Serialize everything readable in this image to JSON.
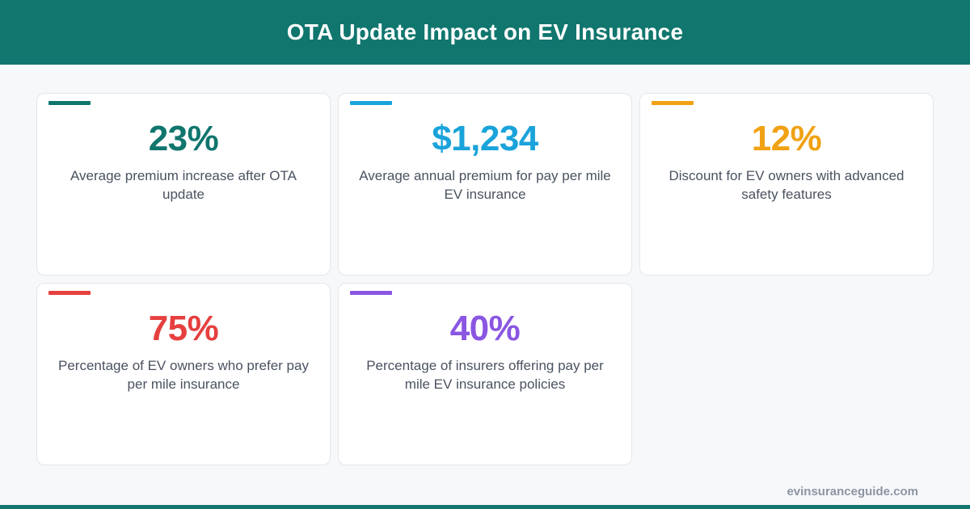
{
  "header": {
    "title": "OTA Update Impact on EV Insurance"
  },
  "cards": [
    {
      "value": "23%",
      "label": "Average premium increase after OTA update",
      "color": "#10766e"
    },
    {
      "value": "$1,234",
      "label": "Average annual premium for pay per mile EV insurance",
      "color": "#1aa3db"
    },
    {
      "value": "12%",
      "label": "Discount for EV owners with advanced safety features",
      "color": "#f0a214"
    },
    {
      "value": "75%",
      "label": "Percentage of EV owners who prefer pay per mile insurance",
      "color": "#e5403f"
    },
    {
      "value": "40%",
      "label": "Percentage of insurers offering pay per mile EV insurance policies",
      "color": "#8a56e2"
    }
  ],
  "footer": {
    "site": "evinsuranceguide.com"
  },
  "colors": {
    "header_bg": "#10766e",
    "page_bg": "#f7f8fa"
  }
}
